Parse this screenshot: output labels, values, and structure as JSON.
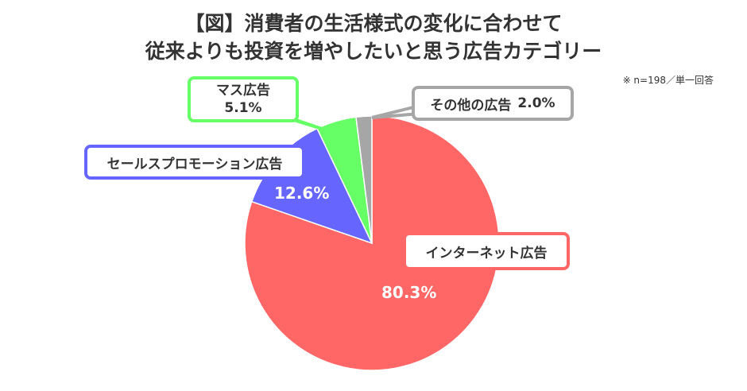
{
  "chart_data": {
    "type": "pie",
    "title_line1": "【図】消費者の生活様式の変化に合わせて",
    "title_line2": "従来よりも投資を増やしたいと思う広告カテゴリー",
    "note": "※ n=198／単一回答",
    "slices": [
      {
        "label": "インターネット広告",
        "value": 80.3,
        "value_label": "80.3%",
        "color": "#FF6666"
      },
      {
        "label": "セールスプロモーション広告",
        "value": 12.6,
        "value_label": "12.6%",
        "color": "#6666FF"
      },
      {
        "label": "マス広告",
        "value": 5.1,
        "value_label": "5.1%",
        "color": "#66FF66"
      },
      {
        "label": "その他の広告",
        "value": 2.0,
        "value_label": "2.0%",
        "color": "#A6A6A6"
      }
    ]
  }
}
